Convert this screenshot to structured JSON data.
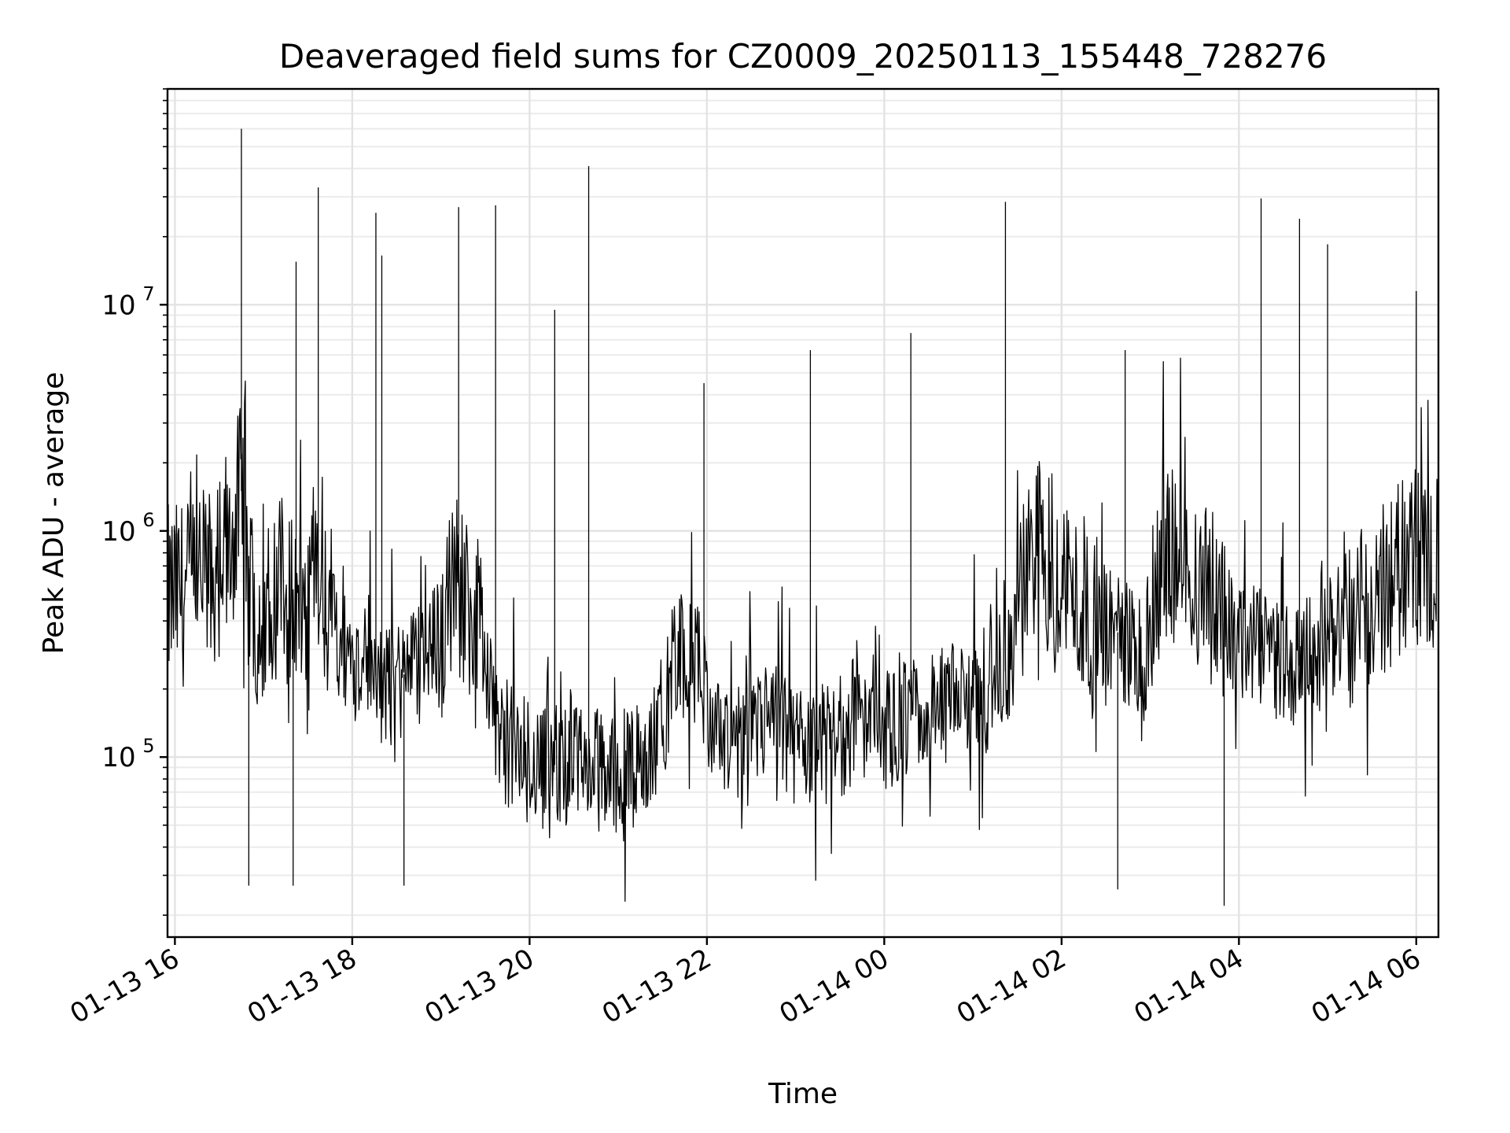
{
  "chart_data": {
    "type": "line",
    "title": "Deaveraged field sums for CZ0009_20250113_155448_728276",
    "xlabel": "Time",
    "ylabel": "Peak ADU - average",
    "yscale": "log",
    "ylim": [
      16000,
      90000000
    ],
    "xlim": [
      "2025-01-13 15:55",
      "2025-01-14 06:15"
    ],
    "grid": true,
    "legend": "none",
    "line_color": "#000000",
    "xtick_labels": [
      "01-13 16",
      "01-13 18",
      "01-13 20",
      "01-13 22",
      "01-14 00",
      "01-14 02",
      "01-14 04",
      "01-14 06"
    ],
    "xtick_times": [
      "2025-01-13 16:00",
      "2025-01-13 18:00",
      "2025-01-13 20:00",
      "2025-01-13 22:00",
      "2025-01-14 00:00",
      "2025-01-14 02:00",
      "2025-01-14 04:00",
      "2025-01-14 06:00"
    ],
    "ytick_labels": [
      {
        "base": "10",
        "exp": "5",
        "value": 100000
      },
      {
        "base": "10",
        "exp": "6",
        "value": 1000000
      },
      {
        "base": "10",
        "exp": "7",
        "value": 10000000
      }
    ],
    "series": [
      {
        "x": [
          "2025-01-13 15:55",
          "2025-01-13 16:10",
          "2025-01-13 16:25",
          "2025-01-13 16:35",
          "2025-01-13 16:45",
          "2025-01-13 16:55",
          "2025-01-13 17:10",
          "2025-01-13 17:25",
          "2025-01-13 17:40",
          "2025-01-13 17:55",
          "2025-01-13 18:10",
          "2025-01-13 18:25",
          "2025-01-13 18:40",
          "2025-01-13 18:55",
          "2025-01-13 19:10",
          "2025-01-13 19:25",
          "2025-01-13 19:40",
          "2025-01-13 19:55",
          "2025-01-13 20:10",
          "2025-01-13 20:25",
          "2025-01-13 20:40",
          "2025-01-13 20:55",
          "2025-01-13 21:10",
          "2025-01-13 21:25",
          "2025-01-13 21:40",
          "2025-01-13 21:55",
          "2025-01-13 22:10",
          "2025-01-13 22:25",
          "2025-01-13 22:40",
          "2025-01-13 22:55",
          "2025-01-13 23:10",
          "2025-01-13 23:25",
          "2025-01-13 23:40",
          "2025-01-13 23:55",
          "2025-01-14 00:10",
          "2025-01-14 00:25",
          "2025-01-14 00:40",
          "2025-01-14 00:55",
          "2025-01-14 01:10",
          "2025-01-14 01:25",
          "2025-01-14 01:40",
          "2025-01-14 01:55",
          "2025-01-14 02:10",
          "2025-01-14 02:25",
          "2025-01-14 02:40",
          "2025-01-14 02:55",
          "2025-01-14 03:10",
          "2025-01-14 03:25",
          "2025-01-14 03:40",
          "2025-01-14 03:55",
          "2025-01-14 04:10",
          "2025-01-14 04:25",
          "2025-01-14 04:40",
          "2025-01-14 04:55",
          "2025-01-14 05:10",
          "2025-01-14 05:25",
          "2025-01-14 05:40",
          "2025-01-14 05:55",
          "2025-01-14 06:10",
          "2025-01-14 06:15"
        ],
        "y": [
          500000,
          550000,
          650000,
          700000,
          1500000,
          400000,
          600000,
          450000,
          500000,
          300000,
          250000,
          200000,
          250000,
          300000,
          600000,
          400000,
          120000,
          100000,
          90000,
          95000,
          90000,
          85000,
          90000,
          110000,
          300000,
          250000,
          100000,
          110000,
          150000,
          120000,
          100000,
          110000,
          150000,
          130000,
          140000,
          150000,
          160000,
          180000,
          200000,
          250000,
          900000,
          700000,
          500000,
          400000,
          350000,
          250000,
          900000,
          700000,
          500000,
          350000,
          300000,
          280000,
          250000,
          300000,
          400000,
          500000,
          600000,
          750000,
          800000,
          700000
        ]
      }
    ],
    "spikes": [
      {
        "x": "2025-01-13 16:45",
        "y": 60000000
      },
      {
        "x": "2025-01-13 17:22",
        "y": 15500000
      },
      {
        "x": "2025-01-13 17:37",
        "y": 33000000
      },
      {
        "x": "2025-01-13 18:16",
        "y": 25500000
      },
      {
        "x": "2025-01-13 18:20",
        "y": 16500000
      },
      {
        "x": "2025-01-13 19:12",
        "y": 27000000
      },
      {
        "x": "2025-01-13 19:37",
        "y": 27500000
      },
      {
        "x": "2025-01-13 20:17",
        "y": 9500000
      },
      {
        "x": "2025-01-13 20:40",
        "y": 41000000
      },
      {
        "x": "2025-01-13 21:58",
        "y": 4500000
      },
      {
        "x": "2025-01-13 23:10",
        "y": 6300000
      },
      {
        "x": "2025-01-14 00:18",
        "y": 7500000
      },
      {
        "x": "2025-01-14 01:22",
        "y": 28500000
      },
      {
        "x": "2025-01-14 02:43",
        "y": 6300000
      },
      {
        "x": "2025-01-14 04:15",
        "y": 29500000
      },
      {
        "x": "2025-01-14 04:41",
        "y": 24000000
      },
      {
        "x": "2025-01-14 05:00",
        "y": 18500000
      },
      {
        "x": "2025-01-14 06:00",
        "y": 11500000
      }
    ],
    "dips": [
      {
        "x": "2025-01-13 16:50",
        "y": 27000
      },
      {
        "x": "2025-01-13 17:20",
        "y": 27000
      },
      {
        "x": "2025-01-13 18:35",
        "y": 27000
      },
      {
        "x": "2025-01-14 02:38",
        "y": 26000
      },
      {
        "x": "2025-01-14 03:50",
        "y": 22000
      }
    ]
  }
}
